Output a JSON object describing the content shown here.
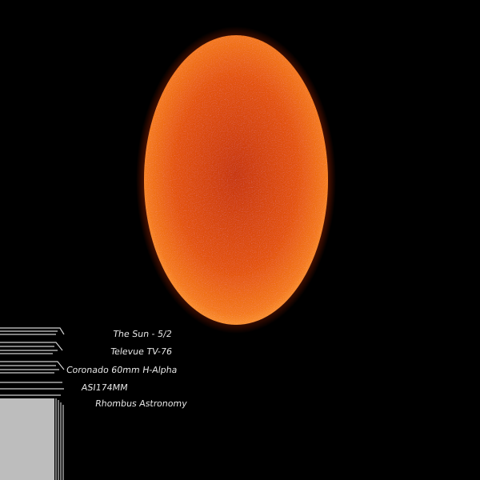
{
  "image": {
    "caption": [
      "The Sun - 5/2",
      "Televue TV-76",
      "Coronado 60mm H-Alpha",
      "ASI174MM",
      "Rhombus Astronomy"
    ]
  }
}
